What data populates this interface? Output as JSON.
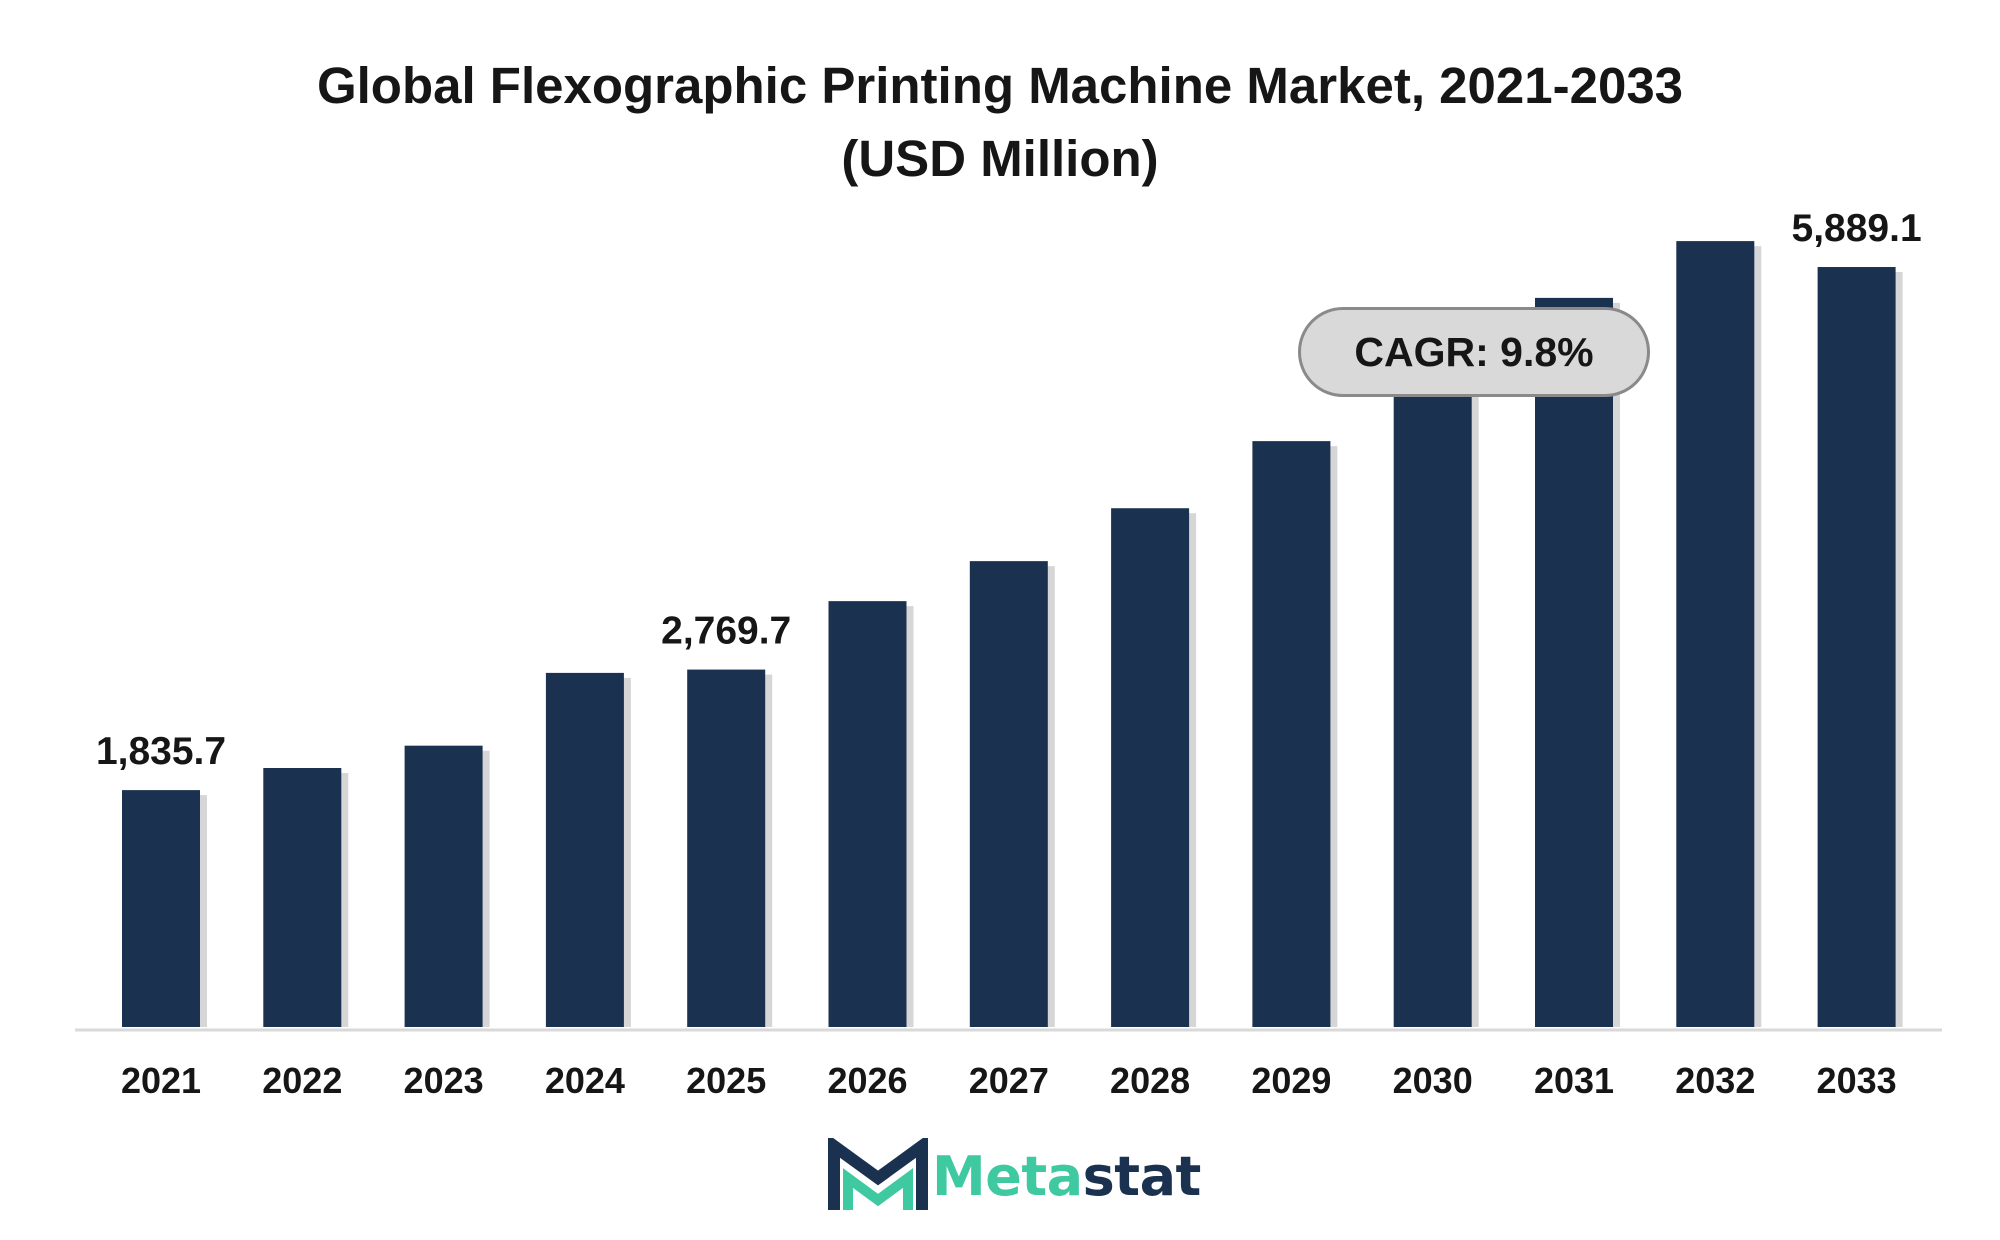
{
  "chart_data": {
    "type": "bar",
    "title": "Global Flexographic Printing Machine Market, 2021-2033",
    "subtitle": "(USD Million)",
    "categories": [
      "2021",
      "2022",
      "2023",
      "2024",
      "2025",
      "2026",
      "2027",
      "2028",
      "2029",
      "2030",
      "2031",
      "2032",
      "2033"
    ],
    "values": [
      1835.7,
      2007,
      2180,
      2744,
      2769.7,
      3300,
      3610,
      4020,
      4540,
      5140,
      5650,
      6090,
      5889.1
    ],
    "data_labels": [
      {
        "index": 0,
        "text": "1,835.7"
      },
      {
        "index": 4,
        "text": "2,769.7"
      },
      {
        "index": 12,
        "text": "5,889.1"
      }
    ],
    "ylim": [
      0,
      6300
    ],
    "grid": false,
    "legend": "none",
    "annotation": "CAGR: 9.8%",
    "bar_color": "#1b3150"
  },
  "brand": {
    "name_part1": "Meta",
    "name_part2": "stat",
    "color_accent": "#3ec9a0",
    "color_dark": "#1b3150"
  }
}
